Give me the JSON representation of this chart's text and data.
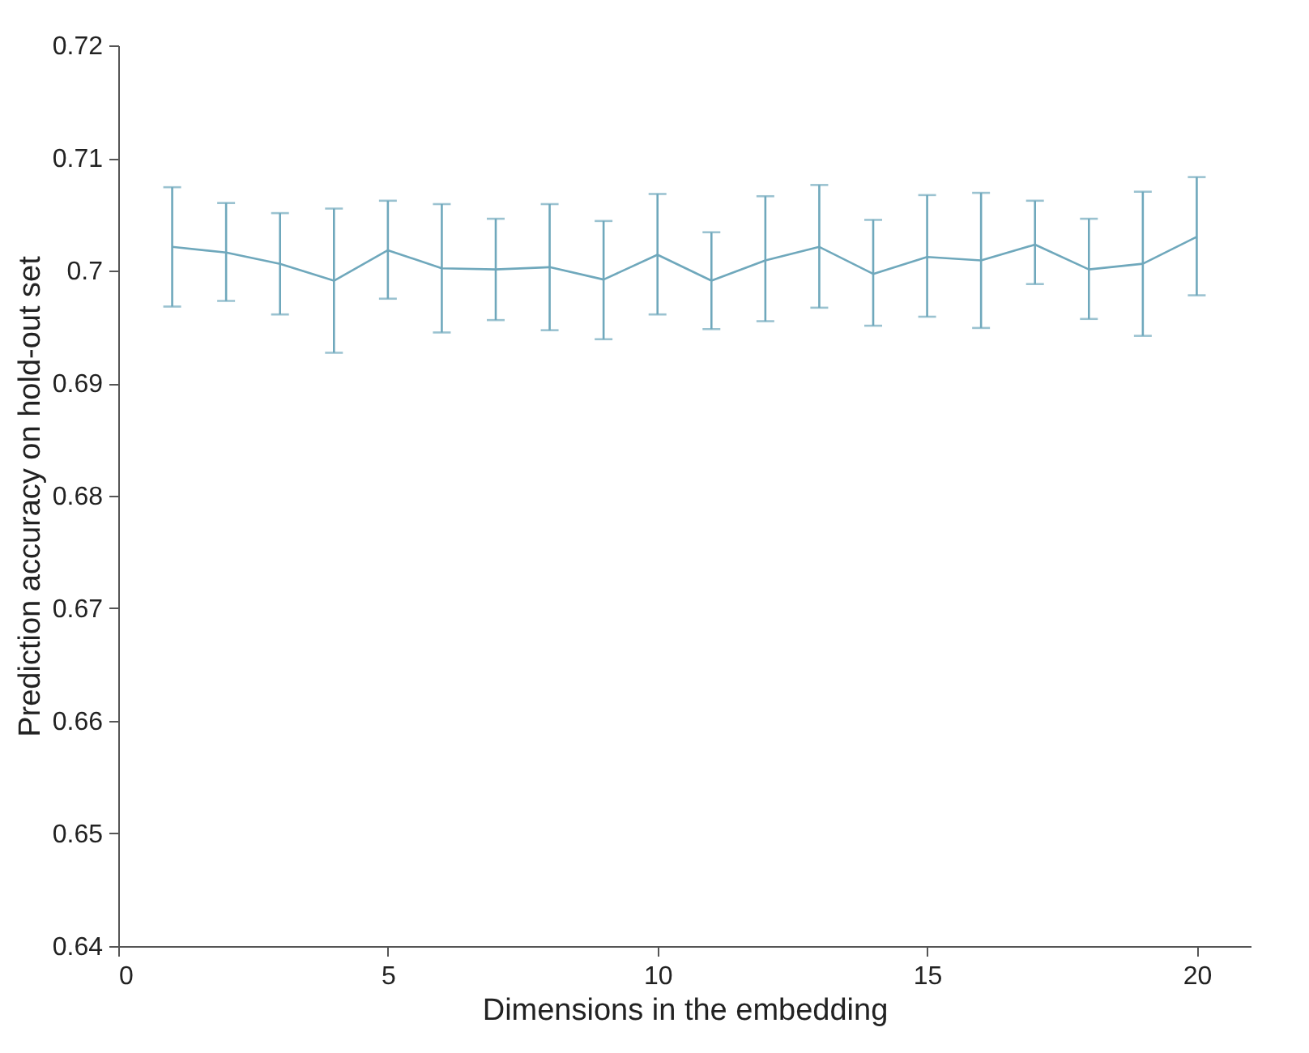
{
  "chart_data": {
    "type": "line",
    "xlabel": "Dimensions in the embedding",
    "ylabel": "Prediction accuracy on hold-out set",
    "x": [
      1,
      2,
      3,
      4,
      5,
      6,
      7,
      8,
      9,
      10,
      11,
      12,
      13,
      14,
      15,
      16,
      17,
      18,
      19,
      20
    ],
    "series": [
      {
        "color": "#6fa8bc",
        "values": [
          0.7021,
          0.7016,
          0.7006,
          0.6991,
          0.7018,
          0.7002,
          0.7001,
          0.7003,
          0.6992,
          0.7014,
          0.6991,
          0.7009,
          0.7021,
          0.6997,
          0.7012,
          0.7009,
          0.7023,
          0.7001,
          0.7006,
          0.703
        ],
        "errors": [
          [
            0.6968,
            0.7074
          ],
          [
            0.6973,
            0.706
          ],
          [
            0.6961,
            0.7051
          ],
          [
            0.6927,
            0.7055
          ],
          [
            0.6975,
            0.7062
          ],
          [
            0.6945,
            0.7059
          ],
          [
            0.6956,
            0.7046
          ],
          [
            0.6947,
            0.7059
          ],
          [
            0.6939,
            0.7044
          ],
          [
            0.6961,
            0.7068
          ],
          [
            0.6948,
            0.7034
          ],
          [
            0.6955,
            0.7066
          ],
          [
            0.6967,
            0.7076
          ],
          [
            0.6951,
            0.7045
          ],
          [
            0.6959,
            0.7067
          ],
          [
            0.6949,
            0.7069
          ],
          [
            0.6988,
            0.7062
          ],
          [
            0.6957,
            0.7046
          ],
          [
            0.6942,
            0.707
          ],
          [
            0.6978,
            0.7083
          ]
        ]
      }
    ],
    "xlim": [
      0,
      21
    ],
    "xticks": [
      0,
      5,
      10,
      15,
      20
    ],
    "ylim": [
      0.64,
      0.72
    ],
    "yticks": [
      0.64,
      0.65,
      0.66,
      0.67,
      0.68,
      0.69,
      0.7,
      0.71,
      0.72
    ],
    "grid": false,
    "marker": "none",
    "line_style": "solid"
  }
}
